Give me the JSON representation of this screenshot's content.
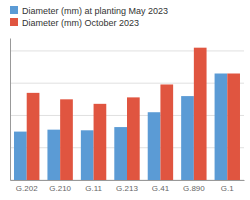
{
  "chart_data": {
    "type": "bar",
    "categories": [
      "G.202",
      "G.210",
      "G.11",
      "G.213",
      "G.41",
      "G.890",
      "G.1"
    ],
    "series": [
      {
        "name": "Diameter (mm) at planting May 2023",
        "color": "#5b9bd5",
        "values": [
          7.5,
          7.8,
          7.7,
          8.2,
          10.5,
          13.0,
          16.5
        ]
      },
      {
        "name": "Diameter (mm) October 2023",
        "color": "#e05540",
        "values": [
          13.5,
          12.5,
          11.8,
          12.8,
          14.8,
          20.5,
          16.5
        ]
      }
    ],
    "ylim": [
      0,
      22
    ],
    "yticks": [
      0,
      5,
      10,
      15,
      20
    ],
    "grid": true,
    "tick_labels": "x",
    "legend": "top-left"
  }
}
